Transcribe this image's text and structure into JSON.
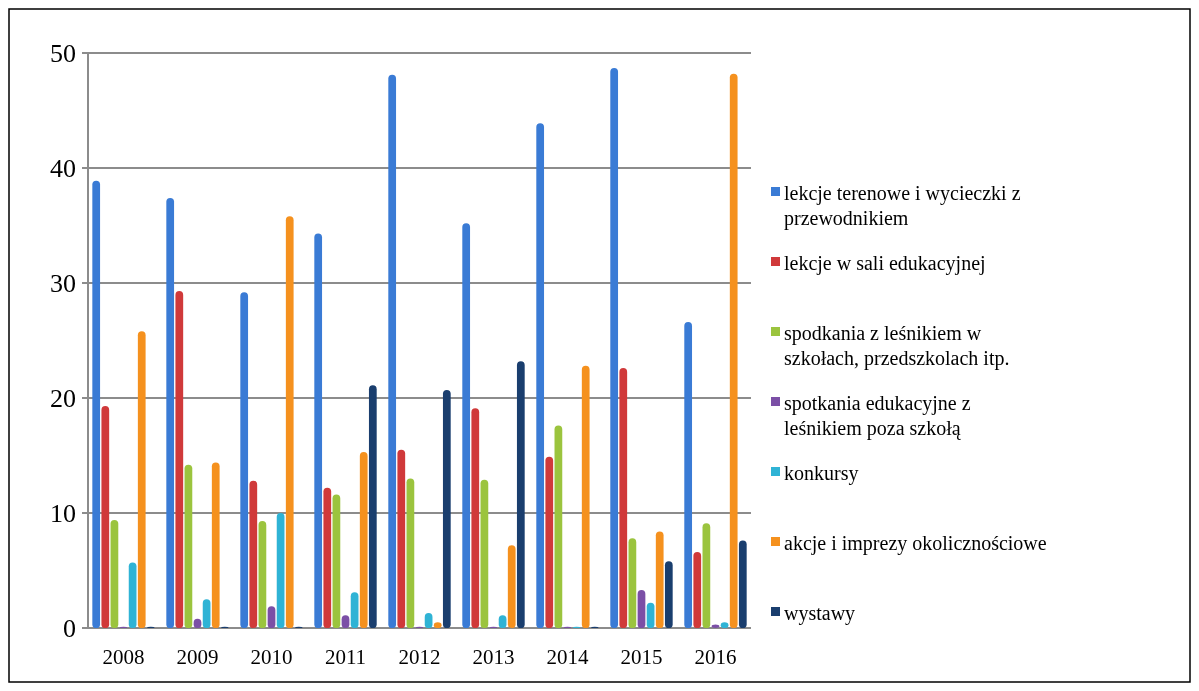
{
  "chart_data": {
    "type": "bar",
    "categories": [
      "2008",
      "2009",
      "2010",
      "2011",
      "2012",
      "2013",
      "2014",
      "2015",
      "2016"
    ],
    "series": [
      {
        "name": "lekcje terenowe i wycieczki z przewodnikiem",
        "color": "#3a7bd5",
        "values": [
          38.9,
          37.4,
          29.2,
          34.3,
          48.1,
          35.2,
          43.9,
          48.7,
          26.6
        ]
      },
      {
        "name": "lekcje w sali edukacyjnej",
        "color": "#d0393a",
        "values": [
          19.3,
          29.3,
          12.8,
          12.2,
          15.5,
          19.1,
          14.9,
          22.6,
          6.6
        ]
      },
      {
        "name": "spodkania z leśnikiem w szkołach, przedszkolach itp.",
        "color": "#9bc43e",
        "values": [
          9.4,
          14.2,
          9.3,
          11.6,
          13,
          12.9,
          17.6,
          7.8,
          9.1
        ]
      },
      {
        "name": "spotkania  edukacyjne z leśnikiem poza szkołą",
        "color": "#7b4fa6",
        "values": [
          0.1,
          0.8,
          1.9,
          1.1,
          0.1,
          0.1,
          0.1,
          3.3,
          0.3
        ]
      },
      {
        "name": "konkursy",
        "color": "#2fb3d5",
        "values": [
          5.7,
          2.5,
          10,
          3.1,
          1.3,
          1.1,
          0.1,
          2.2,
          0.5
        ]
      },
      {
        "name": "akcje i imprezy okolicznościowe",
        "color": "#f5911e",
        "values": [
          25.8,
          14.4,
          35.8,
          15.3,
          0.5,
          7.2,
          22.8,
          8.4,
          48.2
        ]
      },
      {
        "name": "wystawy",
        "color": "#1a3e6e",
        "values": [
          0.1,
          0.1,
          0.1,
          21.1,
          20.7,
          23.2,
          0.1,
          5.8,
          7.6
        ]
      }
    ],
    "ylim": [
      0,
      50
    ],
    "yticks": [
      0,
      10,
      20,
      30,
      40,
      50
    ],
    "grid": "y",
    "legend": "right"
  }
}
